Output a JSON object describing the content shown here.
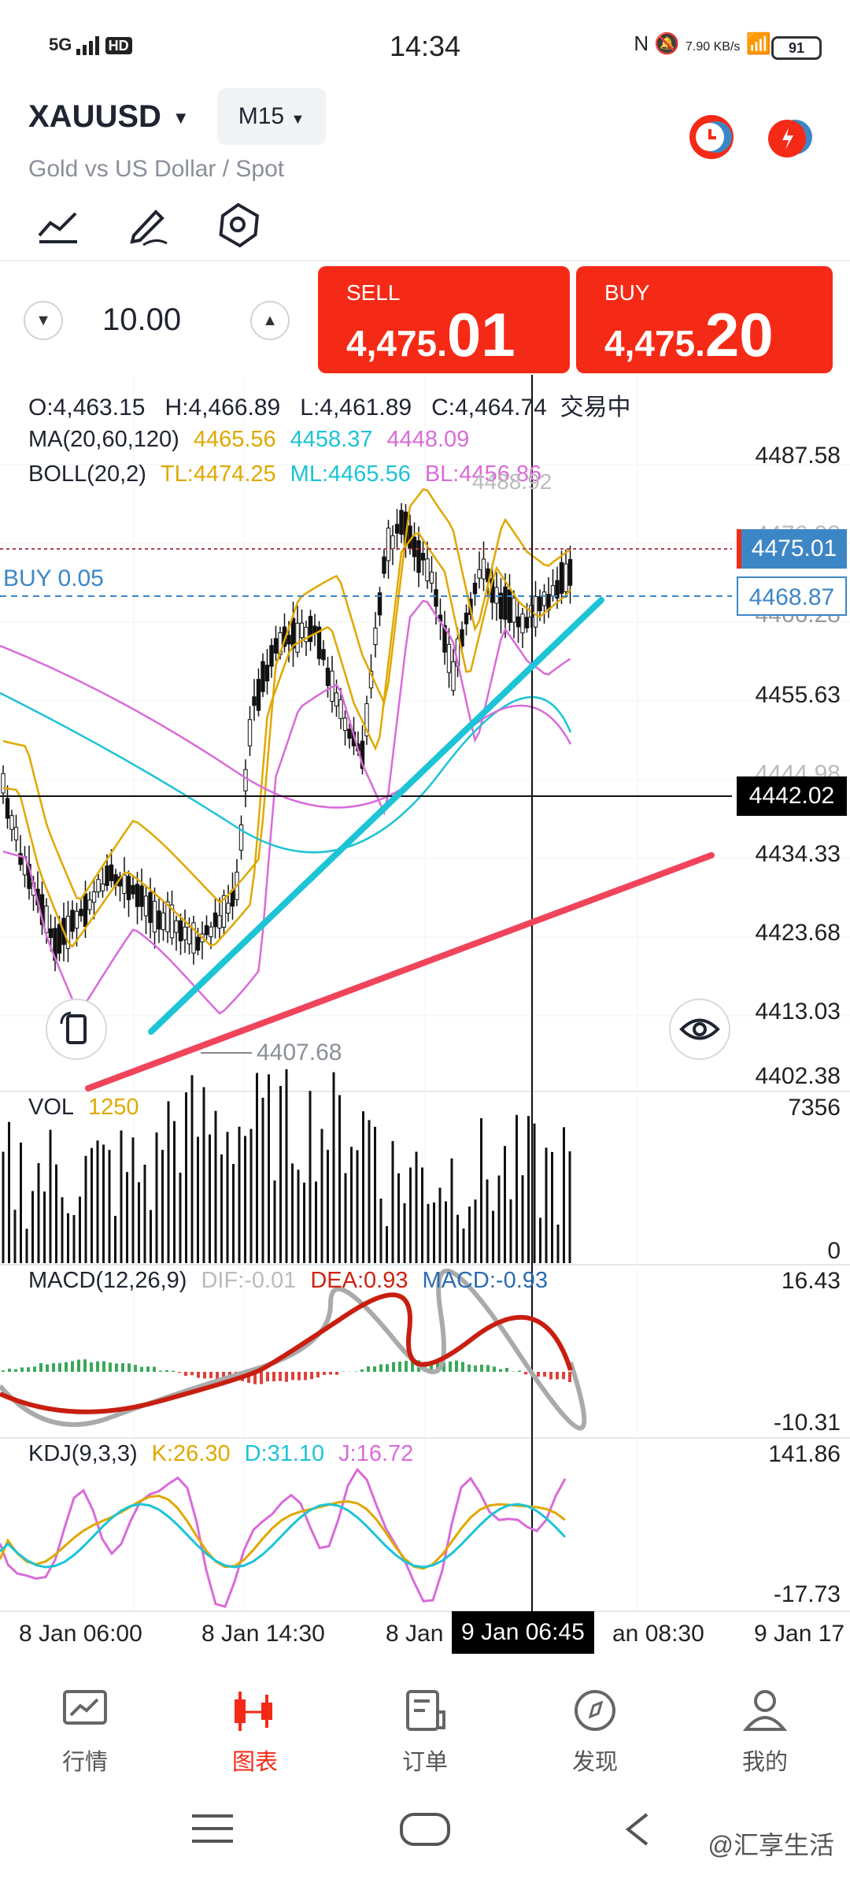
{
  "status_bar": {
    "network": "5G",
    "hd": "HD",
    "time": "14:34",
    "net_speed": "7.90 KB/s",
    "battery": "91"
  },
  "header": {
    "symbol": "XAUUSD",
    "timeframe": "M15",
    "subtitle": "Gold vs US Dollar / Spot"
  },
  "trade": {
    "quantity": "10.00",
    "sell_label": "SELL",
    "sell_price_prefix": "4,475.",
    "sell_price_suffix": "01",
    "buy_label": "BUY",
    "buy_price_prefix": "4,475.",
    "buy_price_suffix": "20"
  },
  "ohlc": {
    "open": "O:4,463.15",
    "high": "H:4,466.89",
    "low": "L:4,461.89",
    "close": "C:4,464.74",
    "status": "交易中"
  },
  "ma": {
    "label": "MA(20,60,120)",
    "v1": "4465.56",
    "v2": "4458.37",
    "v3": "4448.09",
    "c1": "#e0a800",
    "c2": "#1cc4d6",
    "c3": "#d96bd9"
  },
  "boll": {
    "label": "BOLL(20,2)",
    "tl": "TL:4474.25",
    "ml": "ML:4465.56",
    "bl": "BL:4456.86",
    "peak_label": "4488.92"
  },
  "price_axis": [
    "4487.58",
    "4476.98",
    "4466.28",
    "4455.63",
    "4444.98",
    "4434.33",
    "4423.68",
    "4413.03",
    "4402.38"
  ],
  "tags": {
    "current_price": "4475.01",
    "buy_line_price": "4468.87",
    "crosshair_price": "4442.02",
    "position_label": "BUY 0.05",
    "low_label": "4407.68"
  },
  "vol": {
    "label": "VOL",
    "value": "1250",
    "max": "7356",
    "min": "0"
  },
  "macd": {
    "label": "MACD(12,26,9)",
    "dif": "DIF:-0.01",
    "dea": "DEA:0.93",
    "macd": "MACD:-0.93",
    "max": "16.43",
    "min": "-10.31"
  },
  "kdj": {
    "label": "KDJ(9,3,3)",
    "k": "K:26.30",
    "d": "D:31.10",
    "j": "J:16.72",
    "max": "141.86",
    "min": "-17.73"
  },
  "x_axis": [
    "8 Jan 06:00",
    "8 Jan 14:30",
    "8 Jan",
    "9 Jan 06:45",
    "an 08:30",
    "9 Jan 17"
  ],
  "nav": [
    "行情",
    "图表",
    "订单",
    "发现",
    "我的"
  ],
  "watermark": "@汇享生活",
  "colors": {
    "sell_buy_bg": "#f52a16",
    "current_price_tag": "#3d86c6",
    "cyan_trendline": "#1cc4d6",
    "red_trendline": "#f0445a"
  }
}
